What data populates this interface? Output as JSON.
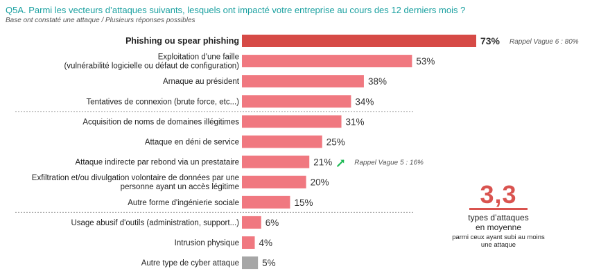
{
  "title": "Q5A. Parmi les vecteurs d’attaques suivants, lesquels ont impacté votre entreprise au cours des 12 derniers mois ?",
  "subtitle": "Base ont constaté une attaque / Plusieurs réponses possibles",
  "colors": {
    "highlight": "#d64a46",
    "bar": "#f07880",
    "other": "#a6a6a6",
    "arrow": "#1db954",
    "accent": "#d9534f",
    "title": "#1aa0a0"
  },
  "chart_data": {
    "type": "bar",
    "orientation": "horizontal",
    "unit": "%",
    "xlim": [
      0,
      73
    ],
    "categories": [
      {
        "label": [
          "Phishing ou spear phishing"
        ],
        "value": 73,
        "value_label": "73%",
        "style": "highlight",
        "bold": true,
        "note": "Rappel Vague 6 : 80%"
      },
      {
        "label": [
          "Exploitation d'une faille",
          "(vulnérabilité logicielle ou défaut de configuration)"
        ],
        "value": 53,
        "value_label": "53%",
        "style": "bar"
      },
      {
        "label": [
          "Arnaque au président"
        ],
        "value": 38,
        "value_label": "38%",
        "style": "bar"
      },
      {
        "label": [
          "Tentatives de connexion (brute force, etc...)"
        ],
        "value": 34,
        "value_label": "34%",
        "style": "bar"
      },
      {
        "label": [
          "Acquisition de noms de domaines illégitimes"
        ],
        "value": 31,
        "value_label": "31%",
        "style": "bar"
      },
      {
        "label": [
          "Attaque en déni de service"
        ],
        "value": 25,
        "value_label": "25%",
        "style": "bar"
      },
      {
        "label": [
          "Attaque indirecte par rebond via un prestataire"
        ],
        "value": 21,
        "value_label": "21%",
        "style": "bar",
        "trend": "up",
        "note": "Rappel Vague 5 : 16%"
      },
      {
        "label": [
          "Exfiltration et/ou divulgation volontaire de données par une",
          "personne ayant un accès légitime"
        ],
        "value": 20,
        "value_label": "20%",
        "style": "bar"
      },
      {
        "label": [
          "Autre forme d'ingénierie sociale"
        ],
        "value": 15,
        "value_label": "15%",
        "style": "bar"
      },
      {
        "label": [
          "Usage abusif d'outils (administration, support...)"
        ],
        "value": 6,
        "value_label": "6%",
        "style": "bar"
      },
      {
        "label": [
          "Intrusion physique"
        ],
        "value": 4,
        "value_label": "4%",
        "style": "bar"
      },
      {
        "label": [
          "Autre type de cyber attaque"
        ],
        "value": 5,
        "value_label": "5%",
        "style": "other"
      }
    ],
    "separators_after_index": [
      3,
      8
    ]
  },
  "summary": {
    "value": "3,3",
    "line1": "types d’attaques",
    "line2": "en moyenne",
    "line3": "parmi ceux ayant subi au moins une attaque"
  }
}
